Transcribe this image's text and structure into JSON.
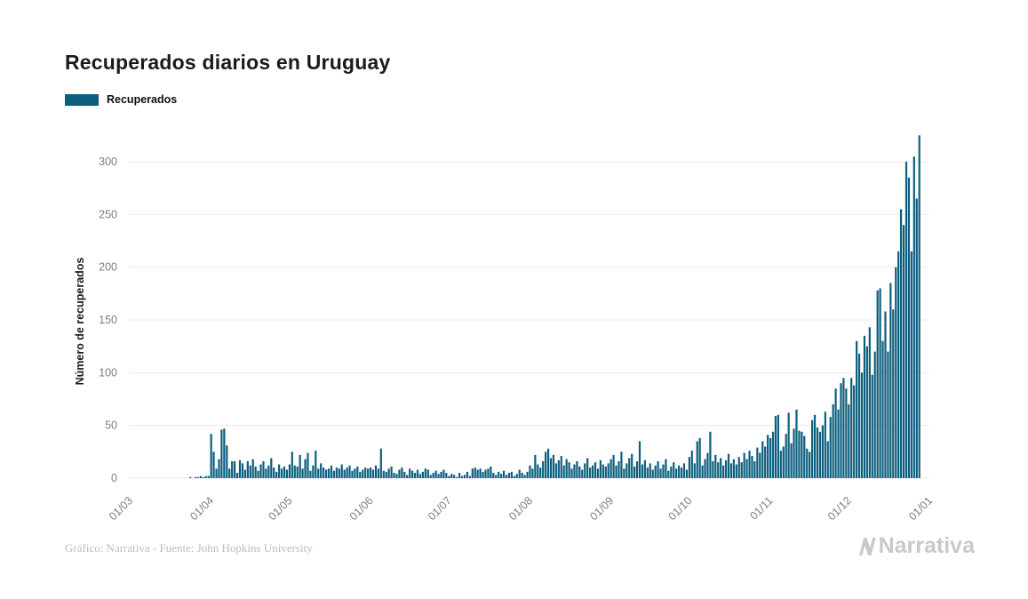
{
  "chart": {
    "title": "Recuperados diarios en Uruguay",
    "legend_label": "Recuperados"
  },
  "footer": {
    "caption": "Gráfico: Narrativa - Fuente: John Hopkins University",
    "logo_text": "Narrativa"
  },
  "chart_data": {
    "type": "bar",
    "title": "Recuperados diarios en Uruguay",
    "xlabel": "",
    "ylabel": "Número de recuperados",
    "ylim": [
      0,
      350
    ],
    "grid": true,
    "legend_position": "top-left",
    "bar_color": "#0d5e7e",
    "grid_color": "#e9e9e9",
    "tick_color": "#7c7c7c",
    "axis_label_color": "#1b1b1b",
    "y_ticks": [
      0,
      50,
      100,
      150,
      200,
      250,
      300
    ],
    "x_tick_labels": [
      "01/03",
      "01/04",
      "01/05",
      "01/06",
      "01/07",
      "01/08",
      "01/09",
      "01/10",
      "01/11",
      "01/12",
      "01/01"
    ],
    "x_tick_day_index": [
      0,
      31,
      61,
      92,
      122,
      153,
      184,
      214,
      245,
      275,
      306
    ],
    "start_date": "01/03/2020",
    "total_days_axis": 306,
    "series": [
      {
        "name": "Recuperados",
        "values": [
          0,
          0,
          0,
          0,
          0,
          0,
          0,
          0,
          0,
          0,
          0,
          0,
          0,
          0,
          0,
          0,
          0,
          0,
          0,
          0,
          0,
          0,
          0,
          1,
          0,
          1,
          1,
          2,
          1,
          2,
          2,
          42,
          25,
          9,
          18,
          46,
          47,
          31,
          9,
          16,
          16,
          5,
          17,
          14,
          8,
          16,
          12,
          18,
          11,
          7,
          13,
          16,
          9,
          12,
          19,
          10,
          6,
          13,
          9,
          11,
          8,
          13,
          25,
          12,
          11,
          22,
          9,
          18,
          24,
          7,
          12,
          26,
          9,
          14,
          10,
          8,
          9,
          12,
          7,
          10,
          9,
          13,
          8,
          10,
          12,
          7,
          9,
          11,
          6,
          8,
          10,
          9,
          10,
          8,
          12,
          9,
          28,
          7,
          6,
          9,
          11,
          5,
          4,
          8,
          10,
          6,
          3,
          9,
          7,
          5,
          8,
          4,
          6,
          9,
          8,
          3,
          5,
          7,
          4,
          6,
          8,
          5,
          2,
          4,
          3,
          1,
          5,
          2,
          3,
          6,
          2,
          9,
          10,
          8,
          9,
          6,
          8,
          9,
          11,
          5,
          3,
          6,
          4,
          7,
          3,
          5,
          6,
          2,
          4,
          8,
          5,
          3,
          6,
          12,
          9,
          22,
          13,
          10,
          16,
          25,
          28,
          19,
          22,
          14,
          17,
          21,
          12,
          18,
          15,
          9,
          13,
          16,
          11,
          8,
          14,
          19,
          10,
          12,
          15,
          9,
          17,
          13,
          11,
          14,
          18,
          22,
          12,
          16,
          25,
          9,
          14,
          19,
          23,
          11,
          16,
          35,
          13,
          17,
          10,
          14,
          8,
          12,
          16,
          9,
          13,
          18,
          7,
          11,
          15,
          9,
          12,
          10,
          14,
          8,
          20,
          26,
          14,
          35,
          38,
          12,
          18,
          24,
          44,
          16,
          22,
          15,
          19,
          12,
          17,
          23,
          14,
          18,
          13,
          20,
          15,
          24,
          18,
          26,
          21,
          16,
          29,
          24,
          35,
          30,
          41,
          38,
          44,
          59,
          60,
          26,
          30,
          42,
          62,
          33,
          47,
          65,
          45,
          44,
          40,
          28,
          25,
          55,
          60,
          48,
          44,
          50,
          63,
          35,
          58,
          70,
          85,
          65,
          90,
          95,
          85,
          70,
          95,
          88,
          130,
          118,
          100,
          135,
          125,
          143,
          98,
          120,
          178,
          180,
          130,
          158,
          120,
          185,
          160,
          200,
          215,
          255,
          240,
          300,
          285,
          215,
          305,
          265,
          325
        ]
      }
    ]
  }
}
